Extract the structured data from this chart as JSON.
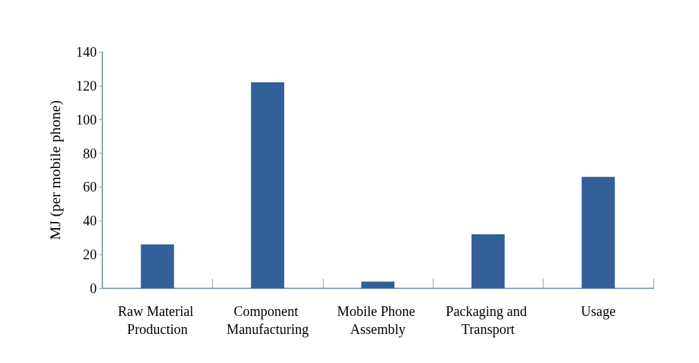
{
  "chart_data": {
    "type": "bar",
    "ylabel": "MJ (per mobile phone)",
    "categories": [
      "Raw Material Production",
      "Component Manufacturing",
      "Mobile Phone Assembly",
      "Packaging and Transport",
      "Usage"
    ],
    "values": [
      26,
      122,
      4,
      32,
      66
    ],
    "color": "#34609a",
    "ylim": [
      0,
      140
    ],
    "yticks": [
      0,
      20,
      40,
      60,
      80,
      100,
      120,
      140
    ],
    "grid": false
  }
}
